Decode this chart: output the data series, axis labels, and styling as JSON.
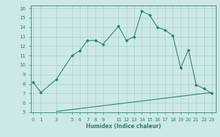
{
  "title": "",
  "xlabel": "Humidex (Indice chaleur)",
  "background_color": "#cce8e8",
  "line_color": "#2e7d6e",
  "grid_color": "#aacece",
  "x_main": [
    0,
    1,
    3,
    5,
    6,
    7,
    8,
    9,
    11,
    12,
    13,
    14,
    15,
    16,
    17,
    18,
    19,
    20,
    21,
    22,
    23
  ],
  "y_main": [
    8.2,
    7.1,
    8.5,
    11.0,
    11.5,
    12.6,
    12.6,
    12.2,
    14.1,
    12.6,
    13.0,
    15.7,
    15.3,
    14.0,
    13.7,
    13.1,
    9.7,
    11.6,
    7.9,
    7.5,
    7.0
  ],
  "x_low": [
    3,
    5,
    6,
    7,
    8,
    9,
    11,
    12,
    13,
    14,
    15,
    16,
    17,
    18,
    19,
    20,
    21,
    22,
    23
  ],
  "y_low": [
    5.1,
    5.3,
    5.4,
    5.5,
    5.6,
    5.7,
    5.9,
    6.0,
    6.1,
    6.2,
    6.3,
    6.4,
    6.5,
    6.6,
    6.7,
    6.8,
    6.9,
    7.0,
    7.1
  ],
  "xlim": [
    -0.3,
    23.5
  ],
  "ylim": [
    5,
    16.3
  ],
  "yticks": [
    5,
    6,
    7,
    8,
    9,
    10,
    11,
    12,
    13,
    14,
    15,
    16
  ],
  "xticks": [
    0,
    1,
    3,
    5,
    6,
    7,
    8,
    9,
    11,
    12,
    13,
    14,
    15,
    16,
    17,
    18,
    19,
    20,
    21,
    22,
    23
  ]
}
